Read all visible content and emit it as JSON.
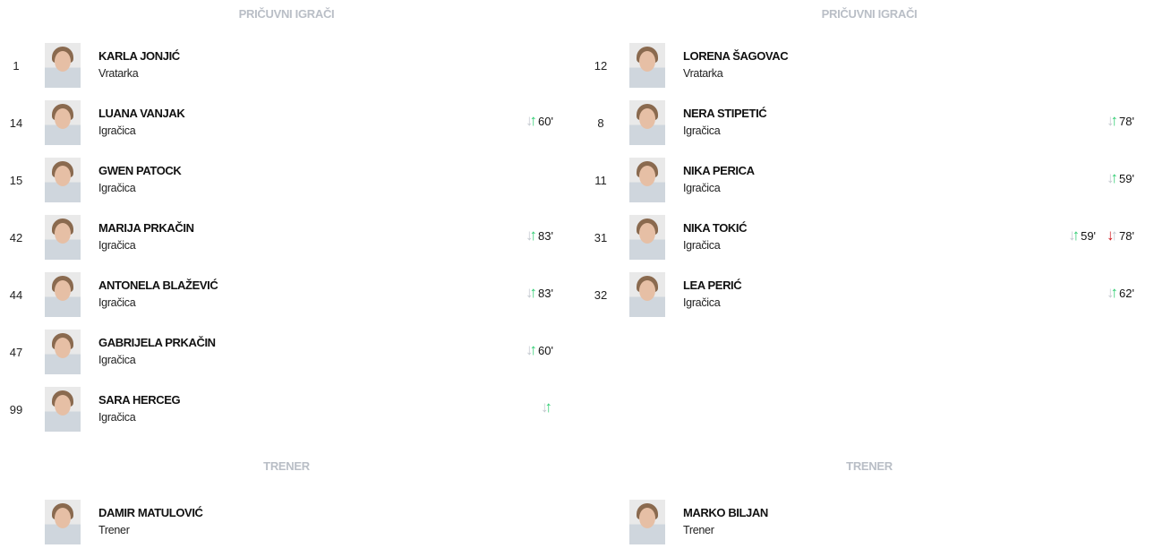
{
  "left": {
    "subs_title": "PRIČUVNI IGRAČI",
    "players": [
      {
        "number": "1",
        "name": "KARLA JONJIĆ",
        "role": "Vratarka",
        "events": []
      },
      {
        "number": "14",
        "name": "LUANA VANJAK",
        "role": "Igračica",
        "events": [
          {
            "type": "in",
            "minute": "60'"
          }
        ]
      },
      {
        "number": "15",
        "name": "GWEN PATOCK",
        "role": "Igračica",
        "events": []
      },
      {
        "number": "42",
        "name": "MARIJA PRKAČIN",
        "role": "Igračica",
        "events": [
          {
            "type": "in",
            "minute": "83'"
          }
        ]
      },
      {
        "number": "44",
        "name": "ANTONELA BLAŽEVIĆ",
        "role": "Igračica",
        "events": [
          {
            "type": "in",
            "minute": "83'"
          }
        ]
      },
      {
        "number": "47",
        "name": "GABRIJELA PRKAČIN",
        "role": "Igračica",
        "events": [
          {
            "type": "in",
            "minute": "60'"
          }
        ]
      },
      {
        "number": "99",
        "name": "SARA HERCEG",
        "role": "Igračica",
        "events": [
          {
            "type": "in",
            "minute": ""
          }
        ]
      }
    ],
    "coach_title": "TRENER",
    "coach": {
      "name": "DAMIR MATULOVIĆ",
      "role": "Trener"
    }
  },
  "right": {
    "subs_title": "PRIČUVNI IGRAČI",
    "players": [
      {
        "number": "12",
        "name": "LORENA ŠAGOVAC",
        "role": "Vratarka",
        "events": []
      },
      {
        "number": "8",
        "name": "NERA STIPETIĆ",
        "role": "Igračica",
        "events": [
          {
            "type": "in",
            "minute": "78'"
          }
        ]
      },
      {
        "number": "11",
        "name": "NIKA PERICA",
        "role": "Igračica",
        "events": [
          {
            "type": "in",
            "minute": "59'"
          }
        ]
      },
      {
        "number": "31",
        "name": "NIKA TOKIĆ",
        "role": "Igračica",
        "events": [
          {
            "type": "in",
            "minute": "59'"
          },
          {
            "type": "out",
            "minute": "78'"
          }
        ]
      },
      {
        "number": "32",
        "name": "LEA PERIĆ",
        "role": "Igračica",
        "events": [
          {
            "type": "in",
            "minute": "62'"
          }
        ]
      }
    ],
    "coach_title": "TRENER",
    "coach": {
      "name": "MARKO BILJAN",
      "role": "Trener"
    }
  },
  "colors": {
    "sub_in": "#2ecc71",
    "sub_out": "#d0161b",
    "inactive_arrow": "#c3c8cf",
    "header": "#b9bec6"
  }
}
